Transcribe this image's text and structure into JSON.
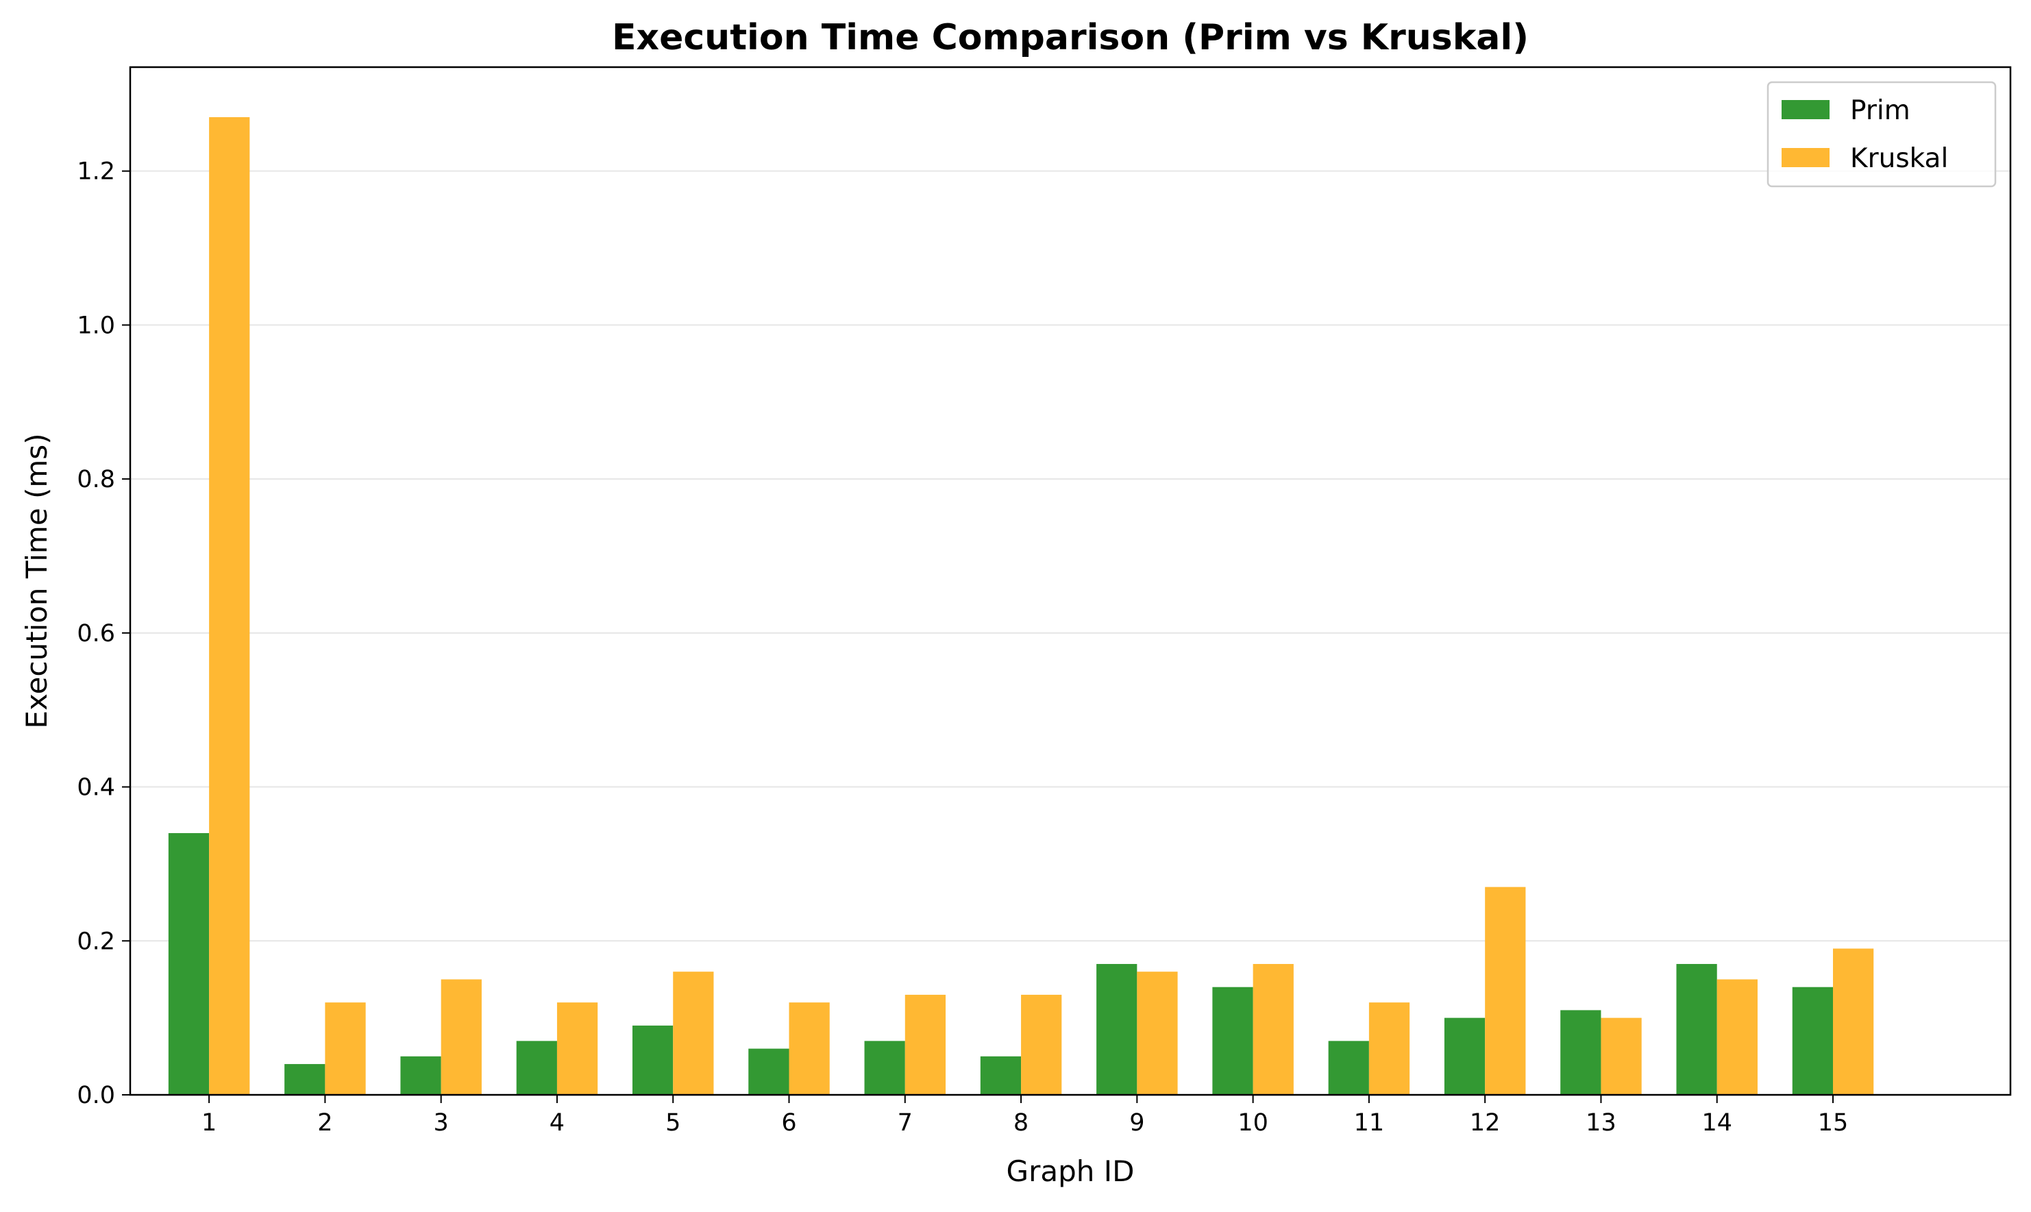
{
  "chart_data": {
    "type": "bar",
    "title": "Execution Time Comparison (Prim vs Kruskal)",
    "xlabel": "Graph ID",
    "ylabel": "Execution Time (ms)",
    "categories": [
      "1",
      "2",
      "3",
      "4",
      "5",
      "6",
      "7",
      "8",
      "9",
      "10",
      "11",
      "12",
      "13",
      "14",
      "15"
    ],
    "series": [
      {
        "name": "Prim",
        "color": "#339933",
        "values": [
          0.34,
          0.04,
          0.05,
          0.07,
          0.09,
          0.06,
          0.07,
          0.05,
          0.17,
          0.14,
          0.07,
          0.1,
          0.11,
          0.17,
          0.14
        ]
      },
      {
        "name": "Kruskal",
        "color": "#ffb833",
        "values": [
          1.27,
          0.12,
          0.15,
          0.12,
          0.16,
          0.12,
          0.13,
          0.13,
          0.16,
          0.17,
          0.12,
          0.27,
          0.1,
          0.15,
          0.19
        ]
      }
    ],
    "ylim": [
      0,
      1.335
    ],
    "yticks": [
      "0.0",
      "0.2",
      "0.4",
      "0.6",
      "0.8",
      "1.0",
      "1.2"
    ],
    "grid": "horizontal",
    "legend_position": "top-right"
  }
}
